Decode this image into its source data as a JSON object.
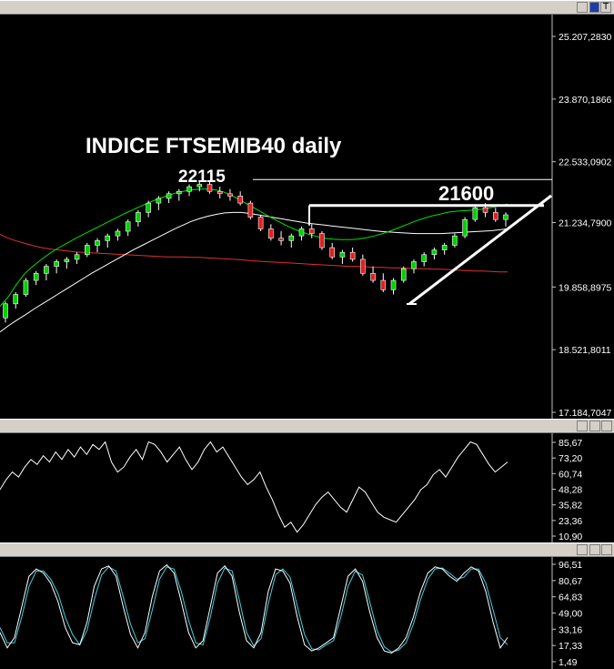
{
  "top_bar": {
    "buttons": [
      {
        "label": ""
      },
      {
        "label": "T"
      }
    ]
  },
  "annotations": {
    "title": "INDICE FTSEMIB40 daily",
    "high_label": "22115",
    "resistance_label": "21600"
  },
  "chart_data": [
    {
      "type": "candlestick",
      "title": "INDICE FTSEMIB40 daily",
      "ylim": [
        17184.7047,
        25207.283
      ],
      "y_tick_labels": [
        "25.207,2830",
        "23.870,1866",
        "22.533,0902",
        "21.234,7900",
        "19.858,8975",
        "18.521,8011",
        "17.184,7047"
      ],
      "y_ticks": [
        25207.283,
        23870.1866,
        22533.0902,
        21234.79,
        19858.8975,
        18521.8011,
        17184.7047
      ],
      "annotations": [
        "22115",
        "21600"
      ],
      "series": [
        {
          "name": "",
          "color": "#00e000",
          "values": [
            19450,
            19650,
            19920,
            20150,
            20310,
            20450,
            20580,
            20690,
            20790,
            20890,
            20980,
            21070,
            21160,
            21250,
            21340,
            21430,
            21510,
            21590,
            21670,
            21740,
            21800,
            21860,
            21900,
            21930,
            21950,
            21950,
            21930,
            21880,
            21800,
            21700,
            21600,
            21500,
            21400,
            21300,
            21210,
            21120,
            21050,
            20990,
            20940,
            20900,
            20880,
            20870,
            20870,
            20880,
            20910,
            20950,
            21000,
            21060,
            21130,
            21200,
            21270,
            21330,
            21380,
            21420,
            21460,
            21480,
            21490,
            21500,
            21520,
            21550,
            21590,
            21630
          ]
        },
        {
          "name": "",
          "color": "#e03030",
          "values": [
            20980,
            20900,
            20840,
            20790,
            20740,
            20700,
            20670,
            20650,
            20630,
            20610,
            20600,
            20590,
            20580,
            20570,
            20560,
            20550,
            20540,
            20530,
            20520,
            20510,
            20500,
            20500,
            20500,
            20490,
            20490,
            20480,
            20470,
            20460,
            20450,
            20440,
            20420,
            20410,
            20400,
            20390,
            20380,
            20370,
            20360,
            20350,
            20340,
            20330,
            20320,
            20310,
            20300,
            20300,
            20290,
            20280,
            20280,
            20270,
            20270,
            20260,
            20250,
            20250,
            20240,
            20240,
            20230,
            20220,
            20210,
            20200,
            20200,
            20190,
            20180,
            20180
          ]
        },
        {
          "name": "",
          "color": "#ffffff",
          "values": [
            18900,
            19030,
            19150,
            19260,
            19380,
            19490,
            19600,
            19710,
            19820,
            19930,
            20040,
            20150,
            20250,
            20350,
            20450,
            20550,
            20650,
            20740,
            20830,
            20920,
            21010,
            21100,
            21180,
            21260,
            21320,
            21370,
            21410,
            21440,
            21450,
            21450,
            21430,
            21400,
            21370,
            21340,
            21310,
            21280,
            21250,
            21220,
            21200,
            21180,
            21160,
            21140,
            21120,
            21100,
            21080,
            21060,
            21040,
            21030,
            21020,
            21010,
            21000,
            21000,
            21000,
            21000,
            21010,
            21020,
            21030,
            21040,
            21050,
            21060,
            21080,
            21100
          ]
        }
      ],
      "candles": [
        [
          19200,
          19550,
          19100,
          19500
        ],
        [
          19500,
          19750,
          19400,
          19700
        ],
        [
          19700,
          20050,
          19650,
          20000
        ],
        [
          20000,
          20200,
          19900,
          20150
        ],
        [
          20150,
          20350,
          20000,
          20300
        ],
        [
          20300,
          20450,
          20150,
          20400
        ],
        [
          20400,
          20500,
          20250,
          20450
        ],
        [
          20450,
          20600,
          20350,
          20550
        ],
        [
          20550,
          20800,
          20500,
          20750
        ],
        [
          20750,
          20900,
          20600,
          20850
        ],
        [
          20850,
          21000,
          20700,
          20950
        ],
        [
          20950,
          21100,
          20850,
          21050
        ],
        [
          21050,
          21300,
          20950,
          21250
        ],
        [
          21250,
          21500,
          21150,
          21450
        ],
        [
          21450,
          21700,
          21350,
          21650
        ],
        [
          21650,
          21800,
          21500,
          21750
        ],
        [
          21750,
          21900,
          21650,
          21850
        ],
        [
          21850,
          21950,
          21700,
          21900
        ],
        [
          21900,
          22050,
          21800,
          22000
        ],
        [
          22000,
          22115,
          21900,
          22050
        ],
        [
          22050,
          22100,
          21850,
          21900
        ],
        [
          21900,
          22000,
          21750,
          21850
        ],
        [
          21850,
          21950,
          21700,
          21800
        ],
        [
          21800,
          21900,
          21600,
          21650
        ],
        [
          21650,
          21700,
          21300,
          21350
        ],
        [
          21350,
          21400,
          21050,
          21100
        ],
        [
          21100,
          21200,
          20850,
          20900
        ],
        [
          20900,
          21050,
          20750,
          20850
        ],
        [
          20850,
          21000,
          20700,
          20950
        ],
        [
          20950,
          21150,
          20850,
          21100
        ],
        [
          21100,
          21200,
          20900,
          21000
        ],
        [
          21000,
          21050,
          20650,
          20700
        ],
        [
          20700,
          20800,
          20450,
          20500
        ],
        [
          20500,
          20650,
          20350,
          20600
        ],
        [
          20600,
          20700,
          20400,
          20450
        ],
        [
          20450,
          20550,
          20100,
          20150
        ],
        [
          20150,
          20300,
          19950,
          20000
        ],
        [
          20000,
          20150,
          19750,
          19800
        ],
        [
          19800,
          20050,
          19700,
          20000
        ],
        [
          20000,
          20300,
          19950,
          20250
        ],
        [
          20250,
          20450,
          20150,
          20400
        ],
        [
          20400,
          20600,
          20300,
          20550
        ],
        [
          20550,
          20700,
          20450,
          20650
        ],
        [
          20650,
          20800,
          20550,
          20750
        ],
        [
          20750,
          21000,
          20700,
          20950
        ],
        [
          20950,
          21350,
          20900,
          21300
        ],
        [
          21300,
          21600,
          21250,
          21550
        ],
        [
          21550,
          21650,
          21350,
          21450
        ],
        [
          21450,
          21550,
          21250,
          21300
        ],
        [
          21300,
          21450,
          21150,
          21400
        ]
      ]
    },
    {
      "type": "line",
      "ylim": [
        10.9,
        85.67
      ],
      "y_tick_labels": [
        "85,67",
        "73,20",
        "60,74",
        "48,28",
        "35,82",
        "23,36",
        "10,90"
      ],
      "y_ticks": [
        85.67,
        73.2,
        60.74,
        48.28,
        35.82,
        23.36,
        10.9
      ],
      "series": [
        {
          "name": "",
          "color": "#ffffff",
          "values": [
            48,
            56,
            62,
            58,
            66,
            72,
            68,
            75,
            70,
            78,
            72,
            80,
            74,
            82,
            76,
            84,
            80,
            86,
            70,
            62,
            66,
            74,
            80,
            72,
            86,
            84,
            78,
            70,
            76,
            82,
            72,
            64,
            70,
            80,
            86,
            78,
            82,
            74,
            66,
            58,
            52,
            56,
            62,
            50,
            40,
            28,
            18,
            22,
            14,
            20,
            28,
            36,
            42,
            46,
            40,
            34,
            30,
            40,
            50,
            46,
            38,
            30,
            26,
            24,
            22,
            28,
            34,
            40,
            48,
            52,
            60,
            64,
            58,
            66,
            74,
            80,
            86,
            84,
            76,
            68,
            62,
            66,
            70
          ]
        }
      ]
    },
    {
      "type": "line",
      "ylim": [
        1.49,
        96.51
      ],
      "y_tick_labels": [
        "96,51",
        "80,67",
        "64,83",
        "49,00",
        "33,16",
        "17,33",
        "1,49"
      ],
      "y_ticks": [
        96.51,
        80.67,
        64.83,
        49.0,
        33.16,
        17.33,
        1.49
      ],
      "series": [
        {
          "name": "",
          "color": "#ffffff",
          "values": [
            30,
            15,
            25,
            55,
            85,
            92,
            88,
            78,
            60,
            35,
            20,
            18,
            40,
            75,
            92,
            95,
            85,
            55,
            28,
            15,
            30,
            65,
            90,
            96,
            88,
            60,
            30,
            15,
            22,
            55,
            88,
            95,
            85,
            50,
            22,
            15,
            30,
            70,
            92,
            90,
            78,
            45,
            18,
            12,
            15,
            20,
            25,
            55,
            85,
            92,
            80,
            50,
            25,
            12,
            10,
            15,
            25,
            45,
            70,
            88,
            94,
            92,
            85,
            80,
            88,
            94,
            90,
            70,
            40,
            15,
            25
          ]
        },
        {
          "name": "",
          "color": "#40d0e0",
          "values": [
            35,
            20,
            20,
            45,
            75,
            90,
            90,
            82,
            68,
            45,
            28,
            18,
            32,
            62,
            86,
            94,
            90,
            65,
            38,
            20,
            24,
            52,
            82,
            94,
            92,
            70,
            42,
            20,
            18,
            45,
            78,
            93,
            90,
            62,
            30,
            17,
            24,
            58,
            86,
            92,
            84,
            56,
            28,
            14,
            13,
            18,
            22,
            45,
            75,
            90,
            86,
            60,
            32,
            16,
            11,
            13,
            20,
            38,
            62,
            82,
            92,
            93,
            88,
            82,
            84,
            92,
            92,
            78,
            52,
            25,
            18
          ]
        }
      ]
    }
  ]
}
